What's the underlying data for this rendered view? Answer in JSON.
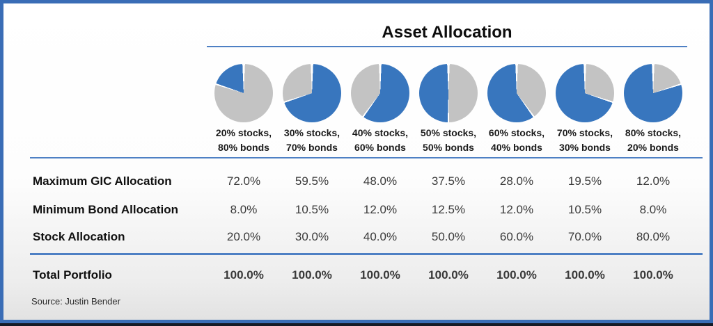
{
  "title": "Asset Allocation",
  "source": "Source: Justin Bender",
  "palette": {
    "pie_blue": "#3876BE",
    "pie_gray": "#C3C3C3",
    "rule_blue": "#4E80C4",
    "total_text_blue": "#2C6FB6",
    "frame_blue": "#3A6DB6"
  },
  "columns": [
    {
      "stocks_label": "20% stocks,",
      "bonds_label": "80% bonds",
      "pie": {
        "first": "gray",
        "split_deg": 288
      }
    },
    {
      "stocks_label": "30% stocks,",
      "bonds_label": "70% bonds",
      "pie": {
        "first": "blue",
        "split_deg": 252
      }
    },
    {
      "stocks_label": "40% stocks,",
      "bonds_label": "60% bonds",
      "pie": {
        "first": "blue",
        "split_deg": 216
      }
    },
    {
      "stocks_label": "50% stocks,",
      "bonds_label": "50% bonds",
      "pie": {
        "first": "gray",
        "split_deg": 180
      }
    },
    {
      "stocks_label": "60% stocks,",
      "bonds_label": "40% bonds",
      "pie": {
        "first": "gray",
        "split_deg": 144
      }
    },
    {
      "stocks_label": "70% stocks,",
      "bonds_label": "30% bonds",
      "pie": {
        "first": "gray",
        "split_deg": 108
      }
    },
    {
      "stocks_label": "80% stocks,",
      "bonds_label": "20% bonds",
      "pie": {
        "first": "gray",
        "split_deg": 72
      }
    }
  ],
  "rows": [
    {
      "label": "Maximum GIC Allocation",
      "values": [
        "72.0%",
        "59.5%",
        "48.0%",
        "37.5%",
        "28.0%",
        "19.5%",
        "12.0%"
      ]
    },
    {
      "label": "Minimum Bond Allocation",
      "values": [
        "8.0%",
        "10.5%",
        "12.0%",
        "12.5%",
        "12.0%",
        "10.5%",
        "8.0%"
      ]
    },
    {
      "label": "Stock Allocation",
      "values": [
        "20.0%",
        "30.0%",
        "40.0%",
        "50.0%",
        "60.0%",
        "70.0%",
        "80.0%"
      ]
    }
  ],
  "total_row": {
    "label": "Total Portfolio",
    "values": [
      "100.0%",
      "100.0%",
      "100.0%",
      "100.0%",
      "100.0%",
      "100.0%",
      "100.0%"
    ]
  },
  "chart_data": [
    {
      "type": "pie",
      "label": "20% stocks, 80% bonds",
      "slices": [
        {
          "name": "stocks",
          "value": 20,
          "color": "#3876BE"
        },
        {
          "name": "bonds",
          "value": 80,
          "color": "#C3C3C3"
        }
      ]
    },
    {
      "type": "pie",
      "label": "30% stocks, 70% bonds",
      "slices": [
        {
          "name": "stocks",
          "value": 30,
          "color": "#C3C3C3"
        },
        {
          "name": "bonds",
          "value": 70,
          "color": "#3876BE"
        }
      ]
    },
    {
      "type": "pie",
      "label": "40% stocks, 60% bonds",
      "slices": [
        {
          "name": "stocks",
          "value": 40,
          "color": "#C3C3C3"
        },
        {
          "name": "bonds",
          "value": 60,
          "color": "#3876BE"
        }
      ]
    },
    {
      "type": "pie",
      "label": "50% stocks, 50% bonds",
      "slices": [
        {
          "name": "stocks",
          "value": 50,
          "color": "#3876BE"
        },
        {
          "name": "bonds",
          "value": 50,
          "color": "#C3C3C3"
        }
      ]
    },
    {
      "type": "pie",
      "label": "60% stocks, 40% bonds",
      "slices": [
        {
          "name": "stocks",
          "value": 60,
          "color": "#3876BE"
        },
        {
          "name": "bonds",
          "value": 40,
          "color": "#C3C3C3"
        }
      ]
    },
    {
      "type": "pie",
      "label": "70% stocks, 30% bonds",
      "slices": [
        {
          "name": "stocks",
          "value": 70,
          "color": "#3876BE"
        },
        {
          "name": "bonds",
          "value": 30,
          "color": "#C3C3C3"
        }
      ]
    },
    {
      "type": "pie",
      "label": "80% stocks, 20% bonds",
      "slices": [
        {
          "name": "stocks",
          "value": 80,
          "color": "#3876BE"
        },
        {
          "name": "bonds",
          "value": 20,
          "color": "#C3C3C3"
        }
      ]
    },
    {
      "type": "table",
      "title": "Asset Allocation",
      "columns": [
        "20% stocks, 80% bonds",
        "30% stocks, 70% bonds",
        "40% stocks, 60% bonds",
        "50% stocks, 50% bonds",
        "60% stocks, 40% bonds",
        "70% stocks, 30% bonds",
        "80% stocks, 20% bonds"
      ],
      "row_headers": [
        "Maximum GIC Allocation",
        "Minimum Bond Allocation",
        "Stock Allocation",
        "Total Portfolio"
      ],
      "values": [
        [
          72.0,
          59.5,
          48.0,
          37.5,
          28.0,
          19.5,
          12.0
        ],
        [
          8.0,
          10.5,
          12.0,
          12.5,
          12.0,
          10.5,
          8.0
        ],
        [
          20.0,
          30.0,
          40.0,
          50.0,
          60.0,
          70.0,
          80.0
        ],
        [
          100.0,
          100.0,
          100.0,
          100.0,
          100.0,
          100.0,
          100.0
        ]
      ],
      "unit": "%"
    }
  ]
}
